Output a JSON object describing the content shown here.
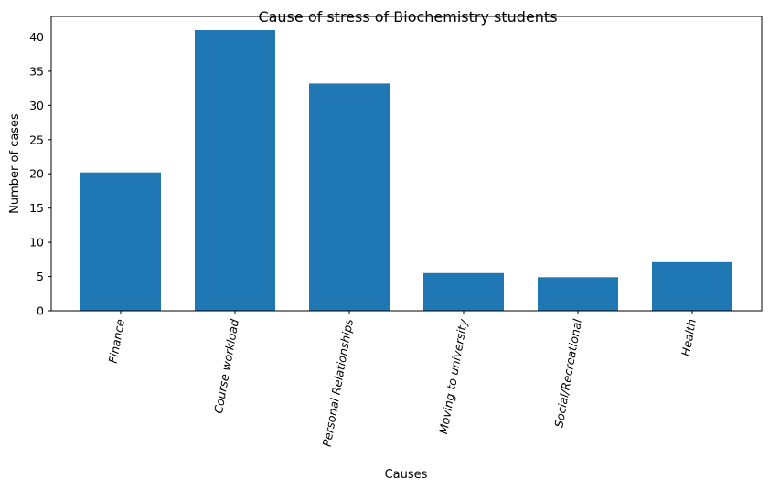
{
  "chart_data": {
    "type": "bar",
    "title": "Cause of stress of Biochemistry students",
    "xlabel": "Causes",
    "ylabel": "Number of cases",
    "categories": [
      "Finance",
      "Course workload",
      "Personal Relationships",
      "Moving to university",
      "Social/Recreational",
      "Health"
    ],
    "values": [
      20.2,
      41.0,
      33.2,
      5.5,
      4.9,
      7.1
    ],
    "ylim": [
      0,
      43
    ],
    "yticks": [
      0,
      5,
      10,
      15,
      20,
      25,
      30,
      35,
      40
    ],
    "ytick_labels": [
      "0",
      "5",
      "10",
      "15",
      "20",
      "25",
      "30",
      "35",
      "40"
    ],
    "grid": false,
    "legend": "none",
    "x_tick_rotation": "vertical-italic",
    "bar_color": "#1f77b4"
  }
}
